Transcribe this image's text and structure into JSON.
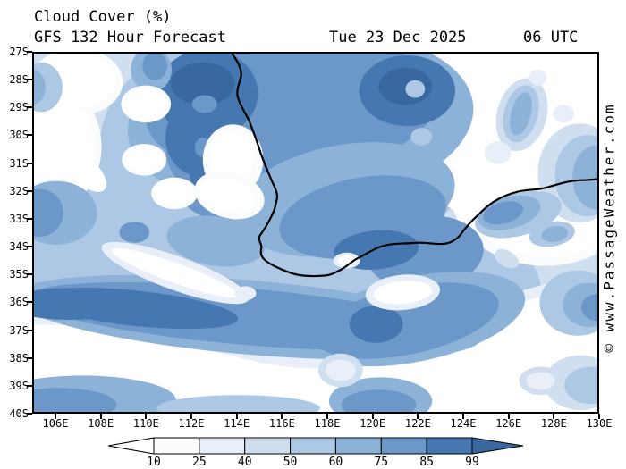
{
  "header": {
    "title": "Cloud Cover (%)",
    "model": "GFS 132 Hour Forecast",
    "date": "Tue 23 Dec 2025",
    "time": "06 UTC"
  },
  "watermark": "© www.PassageWeather.com",
  "map": {
    "lat_labels": [
      "27S",
      "28S",
      "29S",
      "30S",
      "31S",
      "32S",
      "33S",
      "34S",
      "35S",
      "36S",
      "37S",
      "38S",
      "39S",
      "40S"
    ],
    "lon_labels": [
      "106E",
      "108E",
      "110E",
      "112E",
      "114E",
      "116E",
      "118E",
      "120E",
      "122E",
      "124E",
      "126E",
      "128E",
      "130E"
    ],
    "coastline_color": "#000000"
  },
  "legend": {
    "tick_labels": [
      "10",
      "25",
      "40",
      "50",
      "60",
      "75",
      "85",
      "99"
    ],
    "unit": "percent cloud cover",
    "segment_colors": [
      "#ffffff",
      "#fbfcfe",
      "#e9eff8",
      "#cfdff0",
      "#adc8e4",
      "#8db2d8",
      "#6b97c9",
      "#4577b0",
      "#38689f"
    ]
  },
  "map_palette": {
    "white": "#ffffff",
    "c1": "#fbfcfe",
    "c2": "#e9eff8",
    "c3": "#cfdff0",
    "c4": "#adc8e4",
    "c5": "#8db2d8",
    "c6": "#6b97c9",
    "c7": "#4577b0",
    "c8": "#38689f"
  }
}
